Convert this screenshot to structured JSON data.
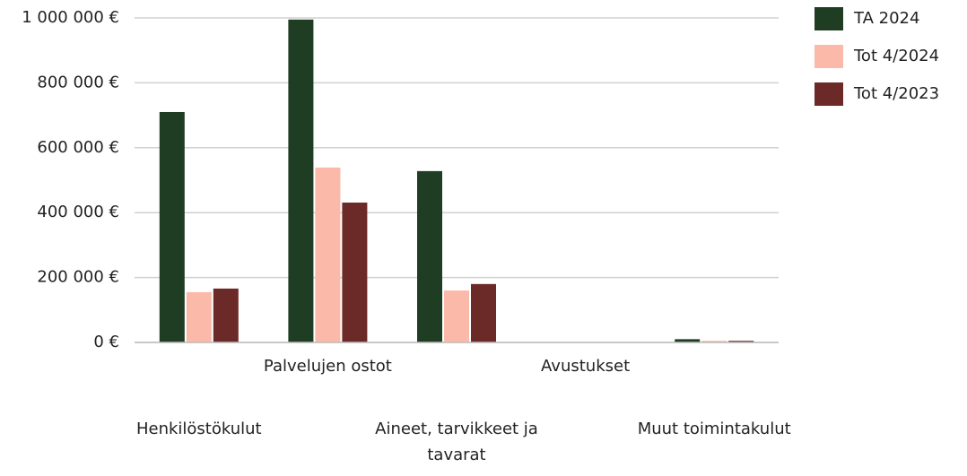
{
  "chart_data": {
    "type": "bar",
    "categories": [
      "Henkilöstökulut",
      "Palvelujen ostot",
      "Aineet, tarvikkeet ja tavarat",
      "Avustukset",
      "Muut toimintakulut"
    ],
    "series": [
      {
        "name": "TA 2024",
        "color": "#1f3d22",
        "values": [
          710000,
          995000,
          528000,
          0,
          10000
        ]
      },
      {
        "name": "Tot 4/2024",
        "color": "#fbb9aa",
        "values": [
          155000,
          539000,
          160000,
          0,
          5000
        ]
      },
      {
        "name": "Tot 4/2023",
        "color": "#6b2a28",
        "values": [
          166000,
          431000,
          180000,
          0,
          5000
        ]
      }
    ],
    "ylim": [
      0,
      1000000
    ],
    "yticks": [
      {
        "value": 0,
        "label": "0 €"
      },
      {
        "value": 200000,
        "label": "200 000 €"
      },
      {
        "value": 400000,
        "label": "400 000 €"
      },
      {
        "value": 600000,
        "label": "600 000 €"
      },
      {
        "value": 800000,
        "label": "800 000 €"
      },
      {
        "value": 1000000,
        "label": "1 000 000 €"
      }
    ],
    "grid": true,
    "legend": "right"
  }
}
